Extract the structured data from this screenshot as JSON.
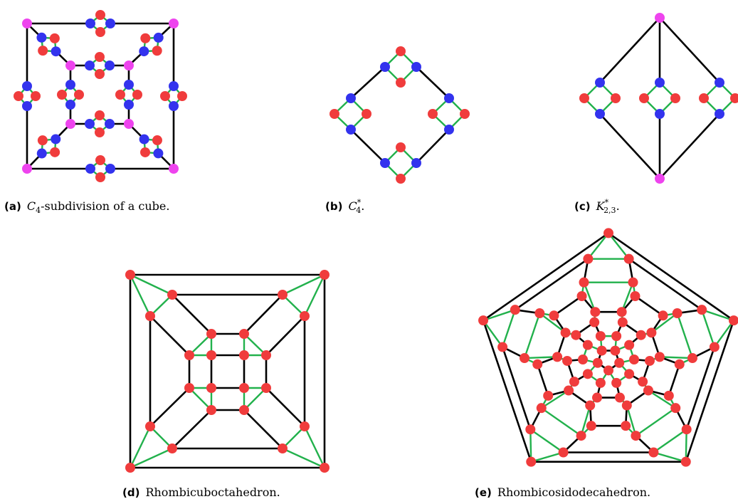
{
  "captions": {
    "a": {
      "label": "(a)",
      "math": "C",
      "sub": "4",
      "text": "-subdivision of a cube."
    },
    "b": {
      "label": "(b)",
      "math": "C",
      "sub": "4",
      "sup": "*",
      "text": "."
    },
    "c": {
      "label": "(c)",
      "math": "K",
      "sub": "2,3",
      "sup": "*",
      "text": "."
    },
    "d": {
      "label": "(d)",
      "text": "Rhombicuboctahedron."
    },
    "e": {
      "label": "(e)",
      "text": "Rhombicosidodecahedron."
    }
  },
  "colors": {
    "edge_black": "#000000",
    "edge_green": "#22b14c",
    "vertex_red": "#f03c3c",
    "vertex_blue": "#3333ee",
    "vertex_magenta": "#ee44ee"
  }
}
